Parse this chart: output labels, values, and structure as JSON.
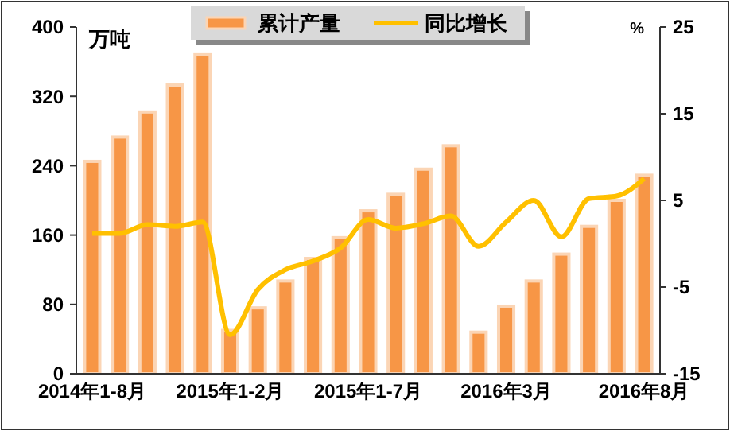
{
  "chart_data": {
    "type": "bar",
    "ylabel": "万吨",
    "y2label": "%",
    "categories": [
      "2014年1-8月",
      null,
      null,
      null,
      null,
      "2015年1-2月",
      null,
      null,
      null,
      null,
      "2015年1-7月",
      null,
      null,
      null,
      null,
      "2016年3月",
      null,
      null,
      null,
      null,
      "2016年8月"
    ],
    "series": [
      {
        "name": "累计产量",
        "color": "#f79646",
        "values": [
          245,
          273,
          302,
          333,
          368,
          50,
          76,
          107,
          133,
          157,
          188,
          207,
          236,
          263,
          48,
          78,
          107,
          138,
          170,
          200,
          229
        ]
      },
      {
        "name": "同比增长",
        "type": "line",
        "axis": "y2",
        "color": "#ffc000",
        "values": [
          1.2,
          1.2,
          2.2,
          2.0,
          2.5,
          -10.5,
          -5.3,
          -3.0,
          -2.0,
          -0.5,
          2.8,
          1.8,
          2.3,
          3.2,
          -0.3,
          2.5,
          5.0,
          0.8,
          5.2,
          5.5,
          7.5
        ]
      }
    ],
    "ylim": [
      0,
      400
    ],
    "yticks": [
      0,
      80,
      160,
      240,
      320,
      400
    ],
    "y2lim": [
      -15,
      25
    ],
    "y2ticks": [
      -15,
      -5,
      5,
      15,
      25
    ],
    "legend": "top",
    "grid": false,
    "marker": "none",
    "line_style": "solid"
  }
}
